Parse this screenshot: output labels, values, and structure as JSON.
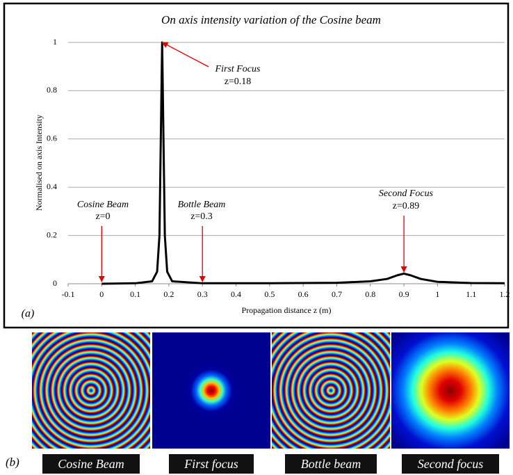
{
  "chart_data": {
    "type": "line",
    "title": "On axis intensity variation of the Cosine beam",
    "x_label": "Propagation distance z (m)",
    "y_label": "Normalised on axis Intensity",
    "x": [
      0,
      0.1,
      0.15,
      0.165,
      0.172,
      0.176,
      0.18,
      0.184,
      0.188,
      0.195,
      0.21,
      0.3,
      0.5,
      0.7,
      0.8,
      0.85,
      0.88,
      0.9,
      0.92,
      0.95,
      1.0,
      1.1,
      1.2
    ],
    "values": [
      0,
      0.002,
      0.01,
      0.05,
      0.2,
      0.6,
      1,
      0.6,
      0.2,
      0.05,
      0.01,
      0.002,
      0.002,
      0.004,
      0.01,
      0.02,
      0.035,
      0.042,
      0.035,
      0.02,
      0.008,
      0.003,
      0.002
    ],
    "color": "#000000",
    "xlim": [
      -0.1,
      1.2
    ],
    "xticks": [
      -0.1,
      0,
      0.1,
      0.2,
      0.3,
      0.4,
      0.5,
      0.6,
      0.7,
      0.8,
      0.9,
      1,
      1.1,
      1.2
    ],
    "ylim": [
      0,
      1
    ],
    "yticks": [
      0,
      0.2,
      0.4,
      0.6,
      0.8,
      1
    ],
    "grid": true,
    "annotations": [
      {
        "label": "First Focus",
        "sublabel": "z=0.18",
        "x": 0.18,
        "y": 1
      },
      {
        "label": "Cosine Beam",
        "sublabel": "z=0",
        "x": 0,
        "y": 0
      },
      {
        "label": "Bottle Beam",
        "sublabel": "z=0.3",
        "x": 0.3,
        "y": 0
      },
      {
        "label": "Second Focus",
        "sublabel": "z=0.89",
        "x": 0.9,
        "y": 0.04
      }
    ],
    "arrow_color": "#e00000",
    "panel_tag": "(a)"
  },
  "panels": {
    "tag": "(b)",
    "labels": [
      "Cosine Beam",
      "First focus",
      "Bottle beam",
      "Second focus"
    ]
  }
}
